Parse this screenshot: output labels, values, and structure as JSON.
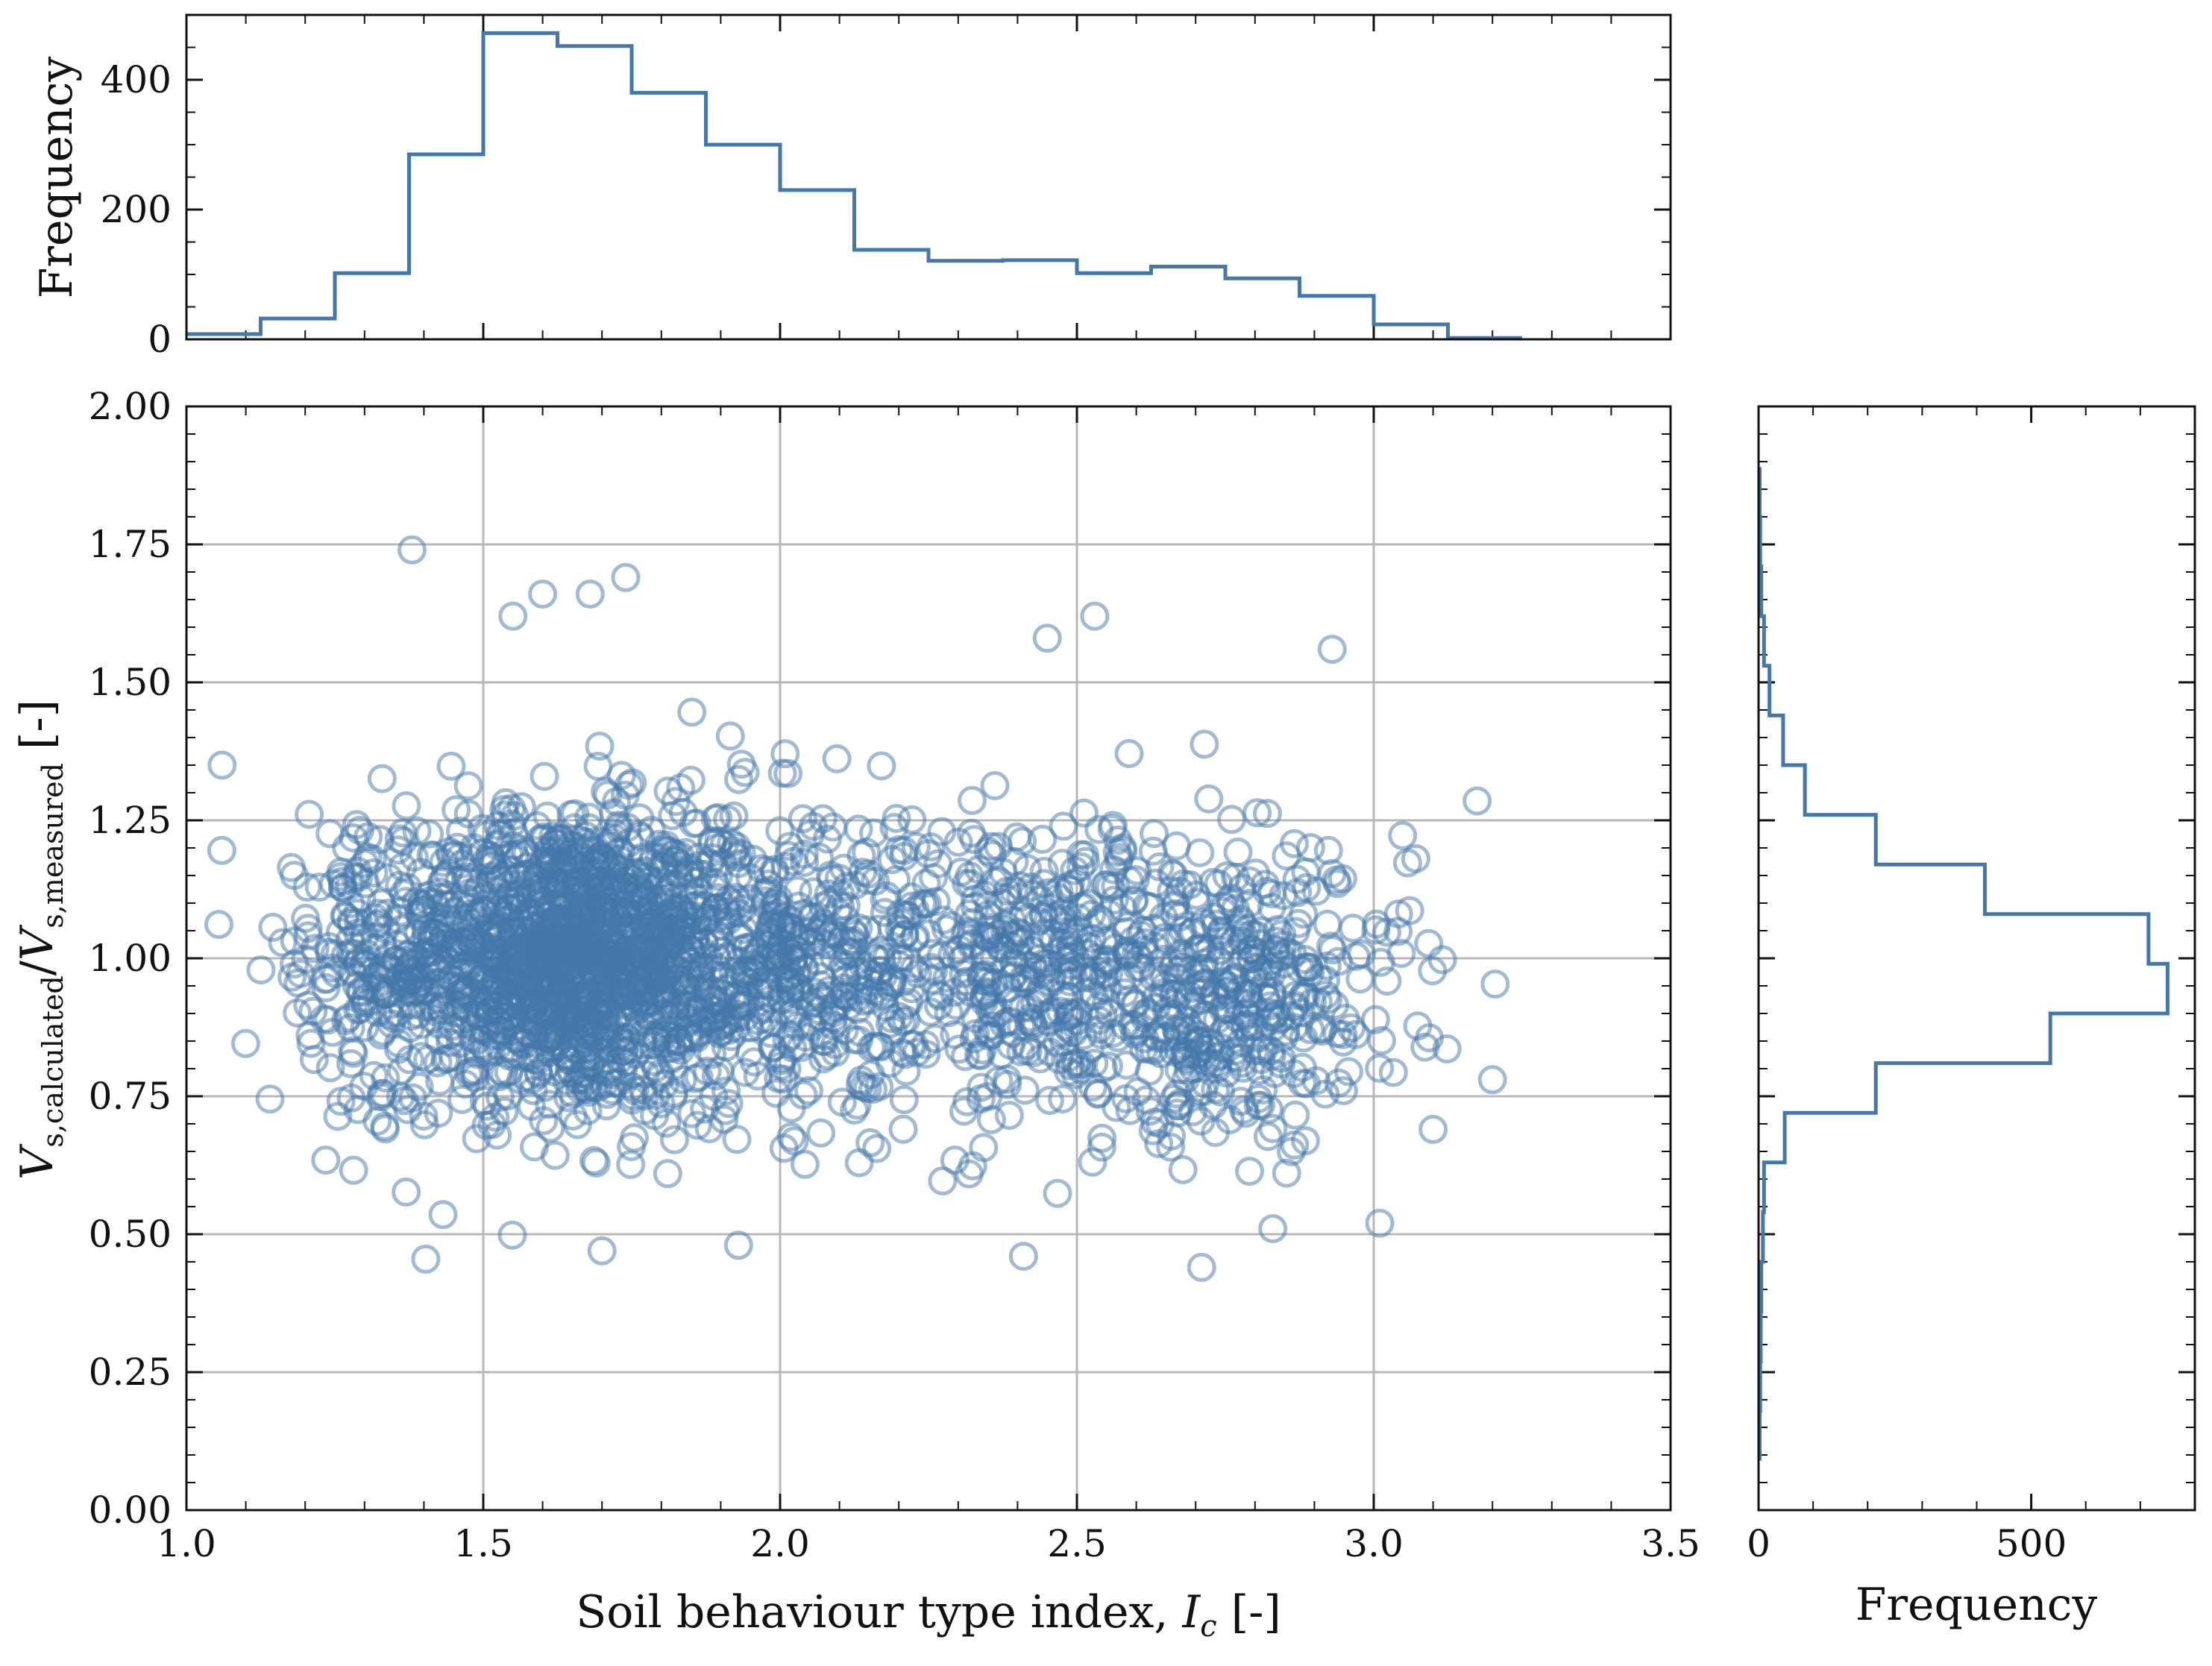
{
  "colors": {
    "series": "#4477aa",
    "grid": "#b8b8b8",
    "axes": "#111111"
  },
  "chart_data": [
    {
      "id": "scatter",
      "type": "scatter",
      "title": "",
      "xlabel_text": "Soil behaviour type index, ",
      "xlabel_symbol": "I",
      "xlabel_symbol_sub": "c",
      "xlabel_unit": " [-]",
      "ylabel_v": "V",
      "ylabel_sub_num": "s,calculated",
      "ylabel_slash": "/",
      "ylabel_sub_den": "s,measured",
      "ylabel_unit": "[-]",
      "xlim": [
        1.0,
        3.5
      ],
      "ylim": [
        0.0,
        2.0
      ],
      "grid": true,
      "legend": "none",
      "xticks": [
        "1.0",
        "1.5",
        "2.0",
        "2.5",
        "3.0",
        "3.5"
      ],
      "yticks": [
        "0.00",
        "0.25",
        "0.50",
        "0.75",
        "1.00",
        "1.25",
        "1.50",
        "1.75",
        "2.00"
      ],
      "marker": "open-circle",
      "notable_points": [
        {
          "x": 1.38,
          "y": 1.74
        },
        {
          "x": 1.55,
          "y": 1.62
        },
        {
          "x": 1.74,
          "y": 1.69
        },
        {
          "x": 1.6,
          "y": 1.66
        },
        {
          "x": 1.68,
          "y": 1.66
        },
        {
          "x": 2.53,
          "y": 1.62
        },
        {
          "x": 2.45,
          "y": 1.58
        },
        {
          "x": 2.93,
          "y": 1.56
        },
        {
          "x": 1.06,
          "y": 1.35
        },
        {
          "x": 1.7,
          "y": 0.47
        },
        {
          "x": 1.93,
          "y": 0.48
        },
        {
          "x": 2.41,
          "y": 0.46
        },
        {
          "x": 2.71,
          "y": 0.44
        },
        {
          "x": 2.83,
          "y": 0.51
        },
        {
          "x": 3.01,
          "y": 0.52
        },
        {
          "x": 3.2,
          "y": 0.78
        },
        {
          "x": 3.1,
          "y": 0.69
        }
      ],
      "clusters": [
        {
          "cx": 1.62,
          "cy": 1.0,
          "sx": 0.14,
          "sy": 0.13,
          "n": 1250
        },
        {
          "cx": 1.9,
          "cy": 1.0,
          "sx": 0.18,
          "sy": 0.14,
          "n": 700
        },
        {
          "cx": 2.45,
          "cy": 0.98,
          "sx": 0.2,
          "sy": 0.14,
          "n": 500
        },
        {
          "cx": 2.78,
          "cy": 0.93,
          "sx": 0.14,
          "sy": 0.13,
          "n": 330
        },
        {
          "cx": 1.3,
          "cy": 0.98,
          "sx": 0.08,
          "sy": 0.13,
          "n": 150
        }
      ]
    },
    {
      "id": "top-histogram",
      "type": "histogram",
      "orientation": "vertical",
      "ylabel": "Frequency",
      "xlim": [
        1.0,
        3.5
      ],
      "ylim": [
        0,
        500
      ],
      "yticks": [
        "0",
        "200",
        "400"
      ],
      "bin_edges": [
        1.0,
        1.125,
        1.25,
        1.375,
        1.5,
        1.625,
        1.75,
        1.875,
        2.0,
        2.125,
        2.25,
        2.375,
        2.5,
        2.625,
        2.75,
        2.875,
        3.0,
        3.125,
        3.25
      ],
      "counts": [
        8,
        32,
        102,
        285,
        472,
        452,
        380,
        300,
        230,
        138,
        121,
        122,
        102,
        112,
        94,
        67,
        23,
        2
      ]
    },
    {
      "id": "right-histogram",
      "type": "histogram",
      "orientation": "horizontal",
      "xlabel": "Frequency",
      "xlim": [
        0,
        800
      ],
      "ylim": [
        0.0,
        2.0
      ],
      "xticks": [
        "0",
        "500"
      ],
      "bin_edges": [
        0.09,
        0.18,
        0.27,
        0.36,
        0.45,
        0.54,
        0.63,
        0.72,
        0.81,
        0.9,
        0.99,
        1.08,
        1.17,
        1.26,
        1.35,
        1.44,
        1.53,
        1.62,
        1.71,
        1.8,
        1.89
      ],
      "counts": [
        2,
        3,
        4,
        5,
        8,
        10,
        48,
        215,
        535,
        750,
        715,
        415,
        215,
        85,
        45,
        20,
        10,
        5,
        3,
        2
      ]
    }
  ]
}
